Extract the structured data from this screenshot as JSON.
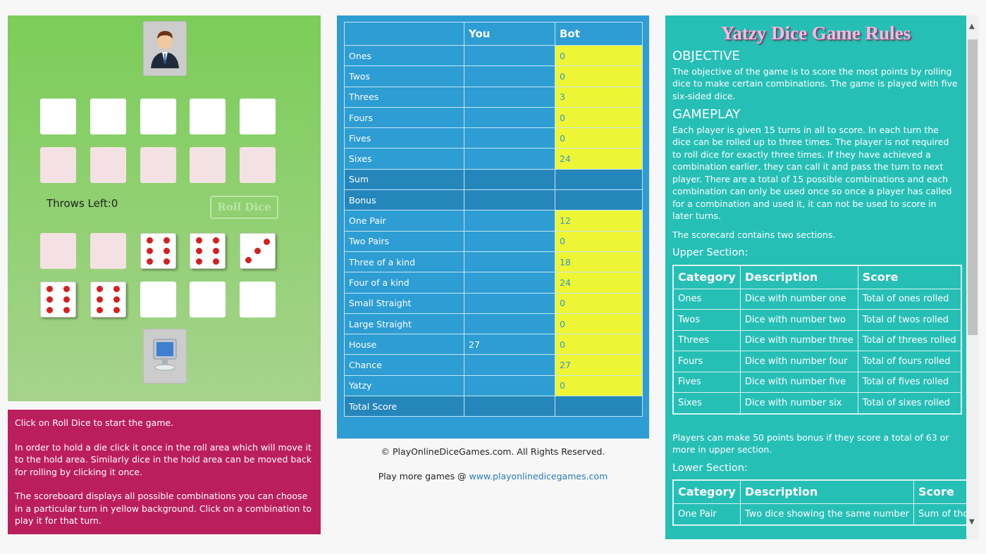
{
  "player_area": {
    "throws_left": "Throws Left:0",
    "roll_button": "Roll Dice",
    "bot_roll_area": [
      null,
      null,
      6,
      6,
      3
    ],
    "bot_hold_area": [
      6,
      6,
      null,
      null,
      null
    ]
  },
  "instructions": [
    "Click on Roll Dice to start the game.",
    "In order to hold a die click it once in the roll area which will move it to the hold area. Similarly dice in the hold area can be moved back for rolling by clicking it once.",
    "The scoreboard displays all possible combinations you can choose in a particular turn in yellow background. Click on a combination to play it for that turn."
  ],
  "scorecard": {
    "headers": [
      "You",
      "Bot"
    ],
    "rows": [
      {
        "label": "Ones",
        "bot": 0
      },
      {
        "label": "Twos",
        "bot": 0
      },
      {
        "label": "Threes",
        "bot": 3
      },
      {
        "label": "Fours",
        "bot": 0
      },
      {
        "label": "Fives",
        "bot": 0
      },
      {
        "label": "Sixes",
        "bot": 24
      },
      {
        "label": "Sum"
      },
      {
        "label": "Bonus"
      },
      {
        "label": "One Pair",
        "bot": 12
      },
      {
        "label": "Two Pairs",
        "bot": 0
      },
      {
        "label": "Three of a kind",
        "bot": 18
      },
      {
        "label": "Four of a kind",
        "bot": 24
      },
      {
        "label": "Small Straight",
        "bot": 0
      },
      {
        "label": "Large Straight",
        "bot": 0
      },
      {
        "label": "House",
        "you": 27,
        "bot": 0
      },
      {
        "label": "Chance",
        "bot": 27
      },
      {
        "label": "Yatzy",
        "bot": 0
      },
      {
        "label": "Total Score"
      }
    ]
  },
  "footer": {
    "copyright": "© PlayOnlineDiceGames.com. All Rights Reserved.",
    "play_more": "Play more games @",
    "link": "www.playonlinedicegames.com"
  },
  "rules": {
    "title": "Yatzy Dice Game Rules",
    "objective_heading": "OBJECTIVE",
    "objective_text": "The objective of the game is to score the most points by rolling dice to make certain combinations. The game is played with five six-sided dice.",
    "gameplay_heading": "GAMEPLAY",
    "gameplay_text": "Each player is given 15 turns in all to score. In each turn the dice can be rolled up to three times. The player is not required to roll dice for exactly three times. If they have achieved a combination earlier, they can call it and pass the turn to next player. There are a total of 15 possible combinations and each combination can only be used once so once a player has called for a combination and used it, it can not be used to score in later turns.",
    "scorecard_text": "The scorecard contains two sections.",
    "upper_heading": "Upper Section:",
    "upper_table": {
      "headers": [
        "Category",
        "Description",
        "Score"
      ],
      "rows": [
        [
          "Ones",
          "Dice with number one",
          "Total of ones rolled"
        ],
        [
          "Twos",
          "Dice with number two",
          "Total of twos rolled"
        ],
        [
          "Threes",
          "Dice with number three",
          "Total of threes rolled"
        ],
        [
          "Fours",
          "Dice with number four",
          "Total of fours rolled"
        ],
        [
          "Fives",
          "Dice with number five",
          "Total of fives rolled"
        ],
        [
          "Sixes",
          "Dice with number six",
          "Total of sixes rolled"
        ]
      ]
    },
    "bonus_text": "Players can make 50 points bonus if they score a total of 63 or more in upper section.",
    "lower_heading": "Lower Section:",
    "lower_table": {
      "headers": [
        "Category",
        "Description",
        "Score"
      ],
      "rows": [
        [
          "One Pair",
          "Two dice showing the same number",
          "Sum of those two dice"
        ]
      ]
    }
  }
}
